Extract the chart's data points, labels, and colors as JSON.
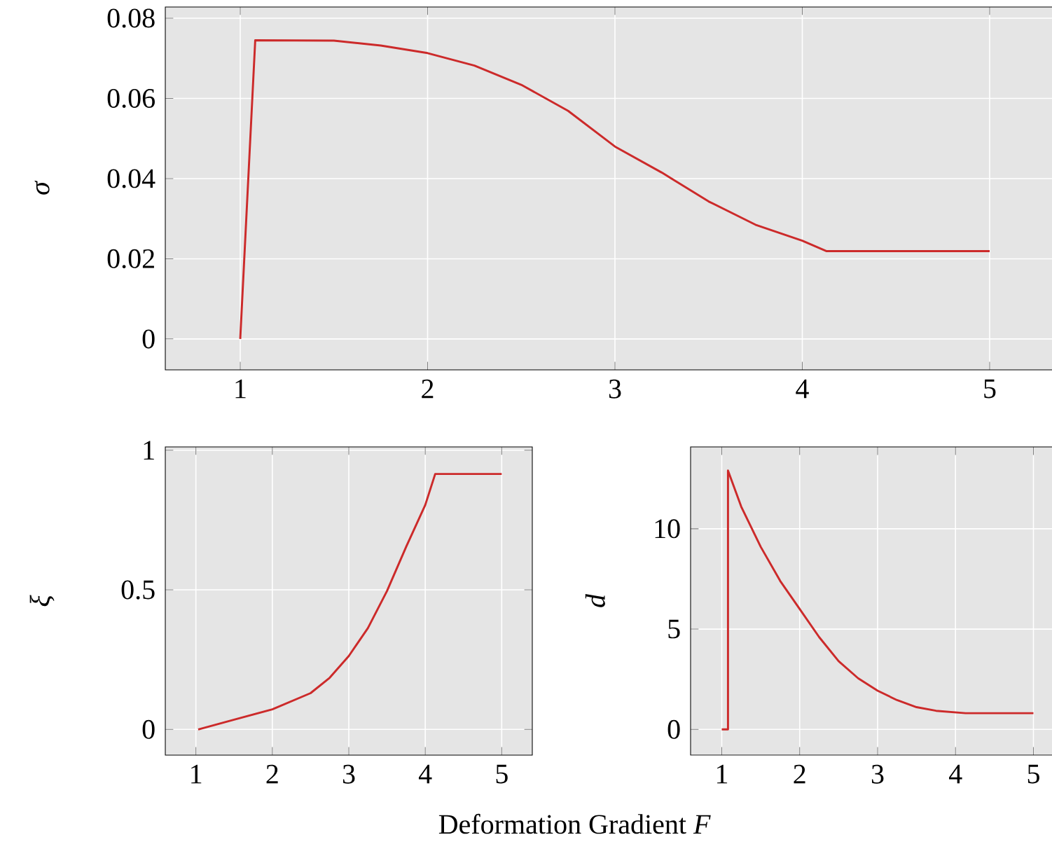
{
  "chart_data": [
    {
      "type": "line",
      "ylabel": "σ",
      "color": "#cc2a2a",
      "grid": true,
      "x": [
        1.0,
        1.08,
        1.5,
        1.75,
        2.0,
        2.25,
        2.5,
        2.75,
        3.0,
        3.25,
        3.5,
        3.75,
        4.0,
        4.13,
        5.0
      ],
      "values": [
        0,
        0.0745,
        0.0744,
        0.0732,
        0.0713,
        0.0682,
        0.0634,
        0.0569,
        0.048,
        0.0415,
        0.0343,
        0.0285,
        0.0245,
        0.0219,
        0.0219
      ],
      "xlim": [
        0.6,
        5.4
      ],
      "ylim": [
        -0.0077,
        0.0828
      ],
      "xticks": [
        1,
        2,
        3,
        4,
        5
      ],
      "yticks": [
        0,
        0.02,
        0.04,
        0.06,
        0.08
      ]
    },
    {
      "type": "line",
      "ylabel": "ξ",
      "xlabel": "Deformation Gradient *F*",
      "color": "#cc2a2a",
      "grid": true,
      "x": [
        1.03,
        1.5,
        2.0,
        2.5,
        2.75,
        3.0,
        3.25,
        3.5,
        3.75,
        4.0,
        4.13,
        5.0
      ],
      "values": [
        0,
        0.035,
        0.072,
        0.13,
        0.185,
        0.263,
        0.363,
        0.496,
        0.654,
        0.804,
        0.915,
        0.915
      ],
      "xlim": [
        0.6,
        5.4
      ],
      "ylim": [
        -0.092,
        1.012
      ],
      "xticks": [
        1,
        2,
        3,
        4,
        5
      ],
      "yticks": [
        0,
        0.5,
        1
      ]
    },
    {
      "type": "line",
      "ylabel": "d",
      "color": "#cc2a2a",
      "grid": true,
      "x": [
        1.0,
        1.08,
        1.08,
        1.25,
        1.5,
        1.75,
        2.0,
        2.25,
        2.5,
        2.75,
        3.0,
        3.25,
        3.5,
        3.75,
        4.13,
        5.0
      ],
      "values": [
        0,
        0,
        12.9,
        11.1,
        9.1,
        7.4,
        6.0,
        4.6,
        3.4,
        2.55,
        1.93,
        1.46,
        1.11,
        0.93,
        0.81,
        0.81
      ],
      "xlim": [
        0.6,
        5.4
      ],
      "ylim": [
        -1.28,
        14.08
      ],
      "xticks": [
        1,
        2,
        3,
        4,
        5
      ],
      "yticks": [
        0,
        5,
        10
      ]
    }
  ]
}
